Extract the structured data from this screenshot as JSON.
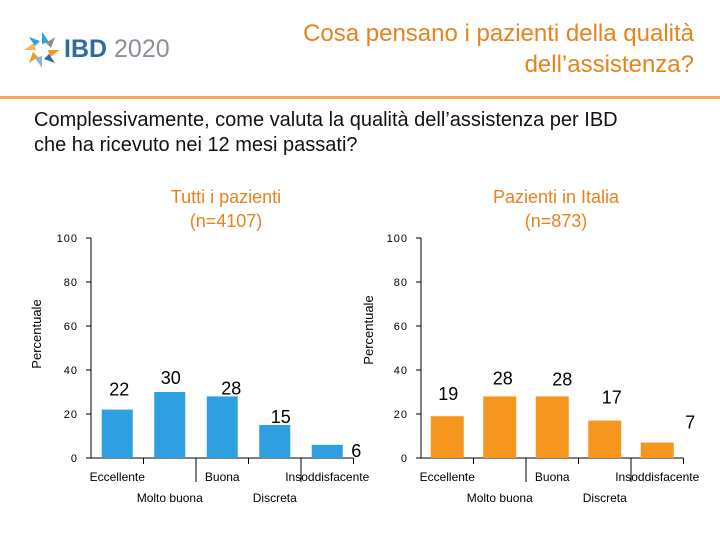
{
  "header": {
    "logo_strong": "IBD",
    "logo_year": "2020",
    "title_line1": "Cosa pensano i pazienti della qualità",
    "title_line2": "dell’assistenza?"
  },
  "question": {
    "line1": "Complessivamente, come valuta la qualità dell’assistenza per IBD",
    "line2": "che ha ricevuto nei 12 mesi passati?"
  },
  "colors": {
    "accent": "#e8821c",
    "rule": "#f0a858",
    "series_all": "#2e9fe0",
    "series_italy": "#f5961e"
  },
  "chart_data": [
    {
      "type": "bar",
      "title": "Tutti i pazienti",
      "subtitle": "(n=4107)",
      "ylabel": "Percentuale",
      "ylim": [
        0,
        100
      ],
      "yticks": [
        "0",
        "20",
        "40",
        "60",
        "80",
        "100"
      ],
      "categories": [
        "Eccellente",
        "Molto buona",
        "Buona",
        "Discreta",
        "Insoddisfacente"
      ],
      "values": [
        22,
        30,
        28,
        15,
        6
      ],
      "labels": [
        "22",
        "30",
        "28",
        "15",
        "6"
      ]
    },
    {
      "type": "bar",
      "title": "Pazienti in Italia",
      "subtitle": "(n=873)",
      "ylabel": "Percentuale",
      "ylim": [
        0,
        100
      ],
      "yticks": [
        "0",
        "20",
        "40",
        "60",
        "80",
        "100"
      ],
      "categories": [
        "Eccellente",
        "Molto buona",
        "Buona",
        "Discreta",
        "Insoddisfacente"
      ],
      "values": [
        19,
        28,
        28,
        17,
        7
      ],
      "labels": [
        "19",
        "28",
        "28",
        "17",
        "7"
      ]
    }
  ]
}
